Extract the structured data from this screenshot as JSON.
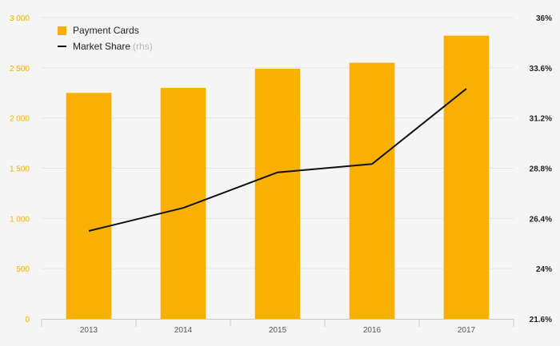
{
  "chart_data": {
    "type": "bar",
    "categories": [
      "2013",
      "2014",
      "2015",
      "2016",
      "2017"
    ],
    "series": [
      {
        "name": "Payment Cards",
        "type": "bar",
        "axis": "left",
        "values": [
          2250,
          2300,
          2490,
          2550,
          2820
        ]
      },
      {
        "name": "Market Share",
        "type": "line",
        "axis": "right",
        "values": [
          25.8,
          26.9,
          28.6,
          29.0,
          32.6
        ]
      }
    ],
    "left_axis": {
      "ylim": [
        0,
        3000
      ],
      "ticks": [
        0,
        500,
        1000,
        1500,
        2000,
        2500,
        3000
      ],
      "tick_labels": [
        "0",
        "500",
        "1 000",
        "1 500",
        "2 000",
        "2 500",
        "3 000"
      ]
    },
    "right_axis": {
      "ylim": [
        21.6,
        36
      ],
      "ticks": [
        21.6,
        24,
        26.4,
        28.8,
        31.2,
        33.6,
        36
      ],
      "tick_labels": [
        "21.6%",
        "24%",
        "26.4%",
        "28.8%",
        "31.2%",
        "33.6%",
        "36%"
      ]
    },
    "legend": {
      "placement": "top-left",
      "bar_label": "Payment Cards",
      "line_label": "Market Share",
      "line_note": "(rhs)"
    },
    "grid": true,
    "colors": {
      "bar": "#f9b000",
      "line": "#111111",
      "left_ticks": "#f0b000",
      "right_ticks": "#222222",
      "grid": "#e4e4e4",
      "axis": "#c9c9c9",
      "background": "#f5f5f5"
    }
  }
}
